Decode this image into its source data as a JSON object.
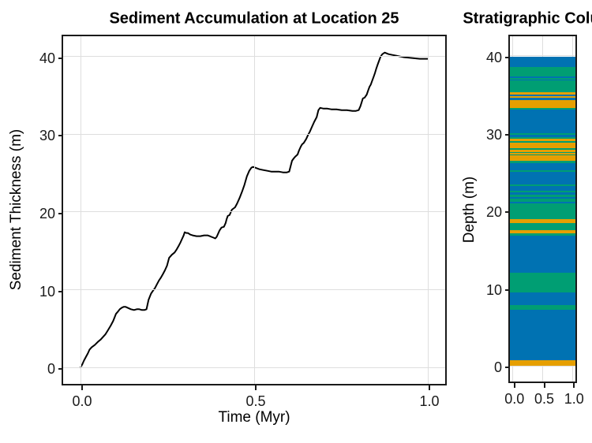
{
  "colors": {
    "blue": "#0072B2",
    "green": "#009E73",
    "orange": "#E69F00",
    "line": "#000000",
    "grid": "#dedede",
    "spine": "#1a1a1a",
    "background": "#ffffff"
  },
  "chart_data": [
    {
      "type": "line",
      "title": "Sediment Accumulation at Location 25",
      "xlabel": "Time (Myr)",
      "ylabel": "Sediment Thickness (m)",
      "xlim": [
        -0.05,
        1.05
      ],
      "ylim": [
        -2.1,
        42.6
      ],
      "x_ticks": [
        0,
        0.5,
        1.0
      ],
      "x_tick_labels": [
        "0.0",
        "0.5",
        "1.0"
      ],
      "y_ticks": [
        0,
        10,
        20,
        30,
        40
      ],
      "y_tick_labels": [
        "0",
        "10",
        "20",
        "30",
        "40"
      ],
      "grid": true,
      "legend": "none",
      "line_color": "#000000",
      "x": [
        0.0,
        0.005,
        0.01,
        0.016,
        0.021,
        0.026,
        0.032,
        0.041,
        0.05,
        0.058,
        0.064,
        0.072,
        0.079,
        0.087,
        0.094,
        0.102,
        0.108,
        0.113,
        0.119,
        0.124,
        0.13,
        0.135,
        0.145,
        0.154,
        0.162,
        0.169,
        0.177,
        0.184,
        0.19,
        0.196,
        0.203,
        0.209,
        0.214,
        0.22,
        0.226,
        0.232,
        0.237,
        0.243,
        0.249,
        0.255,
        0.263,
        0.271,
        0.277,
        0.282,
        0.288,
        0.293,
        0.297,
        0.3,
        0.305,
        0.309,
        0.316,
        0.323,
        0.334,
        0.345,
        0.356,
        0.366,
        0.372,
        0.377,
        0.383,
        0.388,
        0.392,
        0.395,
        0.4,
        0.406,
        0.413,
        0.418,
        0.421,
        0.424,
        0.429,
        0.436,
        0.445,
        0.451,
        0.458,
        0.465,
        0.472,
        0.479,
        0.486,
        0.492,
        0.497,
        0.503,
        0.515,
        0.526,
        0.538,
        0.549,
        0.56,
        0.571,
        0.583,
        0.594,
        0.601,
        0.605,
        0.609,
        0.614,
        0.618,
        0.625,
        0.629,
        0.634,
        0.638,
        0.643,
        0.65,
        0.655,
        0.66,
        0.666,
        0.673,
        0.68,
        0.685,
        0.69,
        0.7,
        0.711,
        0.722,
        0.737,
        0.752,
        0.767,
        0.783,
        0.793,
        0.801,
        0.806,
        0.813,
        0.818,
        0.824,
        0.828,
        0.832,
        0.836,
        0.84,
        0.844,
        0.848,
        0.852,
        0.856,
        0.86,
        0.864,
        0.869,
        0.876,
        0.887,
        0.898,
        0.91,
        0.921,
        0.932,
        0.944,
        0.955,
        0.966,
        0.977,
        0.989,
        1.0
      ],
      "y": [
        0.0,
        0.4,
        0.9,
        1.4,
        1.8,
        2.3,
        2.6,
        2.9,
        3.3,
        3.6,
        3.9,
        4.3,
        4.8,
        5.4,
        6.0,
        6.9,
        7.2,
        7.5,
        7.7,
        7.8,
        7.8,
        7.7,
        7.5,
        7.4,
        7.5,
        7.5,
        7.4,
        7.4,
        7.5,
        8.7,
        9.5,
        9.9,
        10.2,
        10.7,
        11.2,
        11.6,
        12.0,
        12.5,
        13.1,
        14.1,
        14.5,
        14.8,
        15.2,
        15.6,
        16.1,
        16.6,
        17.0,
        17.4,
        17.3,
        17.3,
        17.1,
        17.0,
        16.9,
        16.9,
        17.0,
        17.0,
        16.9,
        16.8,
        16.7,
        16.6,
        16.8,
        17.1,
        17.6,
        18.0,
        18.1,
        18.6,
        19.1,
        19.5,
        19.6,
        20.3,
        20.6,
        21.1,
        21.8,
        22.6,
        23.5,
        24.6,
        25.3,
        25.7,
        25.8,
        25.7,
        25.5,
        25.4,
        25.3,
        25.2,
        25.2,
        25.2,
        25.1,
        25.1,
        25.2,
        25.9,
        26.6,
        26.9,
        27.1,
        27.4,
        27.9,
        28.4,
        28.7,
        28.9,
        29.4,
        29.9,
        30.3,
        30.9,
        31.6,
        32.2,
        33.1,
        33.4,
        33.3,
        33.3,
        33.2,
        33.2,
        33.1,
        33.1,
        33.0,
        33.0,
        33.1,
        33.6,
        34.6,
        34.7,
        35.1,
        35.6,
        36.1,
        36.4,
        36.9,
        37.4,
        37.9,
        38.5,
        39.0,
        39.5,
        40.0,
        40.3,
        40.5,
        40.3,
        40.2,
        40.1,
        40.0,
        39.9,
        39.85,
        39.8,
        39.75,
        39.7,
        39.7,
        39.7
      ]
    },
    {
      "type": "bar",
      "subtype": "stratigraphic-column",
      "title": "Stratigraphic Column",
      "xlabel": "",
      "ylabel": "Depth (m)",
      "xlim": [
        -0.05,
        1.05
      ],
      "ylim": [
        -2.0,
        42.5
      ],
      "x_ticks": [
        0,
        0.5,
        1.0
      ],
      "x_tick_labels": [
        "0.0",
        "0.5",
        "1.0"
      ],
      "y_ticks": [
        0,
        10,
        20,
        30,
        40
      ],
      "y_tick_labels": [
        "0",
        "10",
        "20",
        "30",
        "40"
      ],
      "grid": true,
      "column_top_depth": 39.85,
      "column_base_depth": 0.0,
      "layers": [
        {
          "top": 39.85,
          "base": 38.5,
          "color": "blue"
        },
        {
          "top": 38.5,
          "base": 37.35,
          "color": "green"
        },
        {
          "top": 37.35,
          "base": 37.15,
          "color": "blue"
        },
        {
          "top": 37.15,
          "base": 36.95,
          "color": "green"
        },
        {
          "top": 36.95,
          "base": 36.85,
          "color": "blue"
        },
        {
          "top": 36.85,
          "base": 35.25,
          "color": "green"
        },
        {
          "top": 35.25,
          "base": 35.0,
          "color": "orange"
        },
        {
          "top": 35.0,
          "base": 34.8,
          "color": "blue"
        },
        {
          "top": 34.8,
          "base": 34.55,
          "color": "orange"
        },
        {
          "top": 34.55,
          "base": 34.3,
          "color": "blue"
        },
        {
          "top": 34.3,
          "base": 33.25,
          "color": "orange"
        },
        {
          "top": 33.25,
          "base": 33.1,
          "color": "green"
        },
        {
          "top": 33.1,
          "base": 30.0,
          "color": "blue"
        },
        {
          "top": 30.0,
          "base": 29.75,
          "color": "green"
        },
        {
          "top": 29.75,
          "base": 29.5,
          "color": "blue"
        },
        {
          "top": 29.5,
          "base": 29.25,
          "color": "green"
        },
        {
          "top": 29.25,
          "base": 28.95,
          "color": "orange"
        },
        {
          "top": 28.95,
          "base": 28.8,
          "color": "green"
        },
        {
          "top": 28.8,
          "base": 28.1,
          "color": "orange"
        },
        {
          "top": 28.1,
          "base": 27.9,
          "color": "green"
        },
        {
          "top": 27.9,
          "base": 27.6,
          "color": "orange"
        },
        {
          "top": 27.6,
          "base": 27.45,
          "color": "green"
        },
        {
          "top": 27.45,
          "base": 27.3,
          "color": "orange"
        },
        {
          "top": 27.3,
          "base": 27.15,
          "color": "green"
        },
        {
          "top": 27.15,
          "base": 26.45,
          "color": "orange"
        },
        {
          "top": 26.45,
          "base": 26.15,
          "color": "green"
        },
        {
          "top": 26.15,
          "base": 25.25,
          "color": "blue"
        },
        {
          "top": 25.25,
          "base": 25.0,
          "color": "green"
        },
        {
          "top": 25.0,
          "base": 23.4,
          "color": "blue"
        },
        {
          "top": 23.4,
          "base": 23.15,
          "color": "green"
        },
        {
          "top": 23.15,
          "base": 22.6,
          "color": "blue"
        },
        {
          "top": 22.6,
          "base": 22.35,
          "color": "green"
        },
        {
          "top": 22.35,
          "base": 22.1,
          "color": "blue"
        },
        {
          "top": 22.1,
          "base": 21.75,
          "color": "green"
        },
        {
          "top": 21.75,
          "base": 21.55,
          "color": "blue"
        },
        {
          "top": 21.55,
          "base": 21.2,
          "color": "green"
        },
        {
          "top": 21.2,
          "base": 21.0,
          "color": "blue"
        },
        {
          "top": 21.0,
          "base": 18.95,
          "color": "green"
        },
        {
          "top": 18.95,
          "base": 18.45,
          "color": "orange"
        },
        {
          "top": 18.45,
          "base": 17.55,
          "color": "green"
        },
        {
          "top": 17.55,
          "base": 17.05,
          "color": "orange"
        },
        {
          "top": 17.05,
          "base": 16.8,
          "color": "green"
        },
        {
          "top": 16.8,
          "base": 12.0,
          "color": "blue"
        },
        {
          "top": 12.0,
          "base": 9.5,
          "color": "green"
        },
        {
          "top": 9.5,
          "base": 7.85,
          "color": "blue"
        },
        {
          "top": 7.85,
          "base": 7.2,
          "color": "green"
        },
        {
          "top": 7.2,
          "base": 0.75,
          "color": "blue"
        },
        {
          "top": 0.75,
          "base": 0.0,
          "color": "orange"
        }
      ]
    }
  ]
}
